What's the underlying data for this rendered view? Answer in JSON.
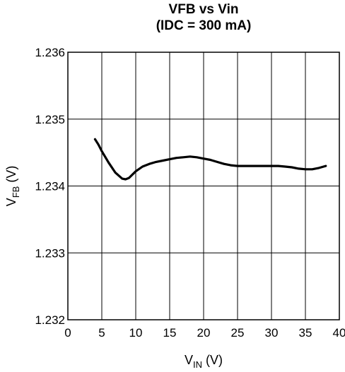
{
  "chart_data": {
    "type": "line",
    "title": "VFB vs Vin",
    "subtitle": "(IDC = 300 mA)",
    "xlabel": {
      "main": "V",
      "sub": "IN",
      "unit": " (V)"
    },
    "ylabel": {
      "main": "V",
      "sub": "FB",
      "unit": " (V)"
    },
    "xlim": [
      0,
      40
    ],
    "ylim": [
      1.232,
      1.236
    ],
    "x_ticks": [
      "0",
      "5",
      "10",
      "15",
      "20",
      "25",
      "30",
      "35",
      "40"
    ],
    "x_tick_values": [
      0,
      5,
      10,
      15,
      20,
      25,
      30,
      35,
      40
    ],
    "y_ticks": [
      "1.232",
      "1.233",
      "1.234",
      "1.235",
      "1.236"
    ],
    "y_tick_values": [
      1.232,
      1.233,
      1.234,
      1.235,
      1.236
    ],
    "grid": true,
    "series": [
      {
        "x": [
          4,
          4.5,
          5,
          6,
          7,
          8,
          8.5,
          9,
          10,
          11,
          12,
          13,
          14,
          15,
          16,
          17,
          18,
          19,
          20,
          21,
          22,
          23,
          24,
          25,
          26,
          27,
          28,
          29,
          30,
          31,
          32,
          33,
          34,
          35,
          36,
          37,
          38
        ],
        "values": [
          1.2347,
          1.23462,
          1.23452,
          1.23435,
          1.2342,
          1.23411,
          1.2341,
          1.23412,
          1.23422,
          1.23429,
          1.23433,
          1.23436,
          1.23438,
          1.2344,
          1.23442,
          1.23443,
          1.23444,
          1.23443,
          1.23441,
          1.23439,
          1.23436,
          1.23433,
          1.23431,
          1.2343,
          1.2343,
          1.2343,
          1.2343,
          1.2343,
          1.2343,
          1.2343,
          1.23429,
          1.23428,
          1.23426,
          1.23425,
          1.23425,
          1.23427,
          1.2343
        ]
      }
    ]
  }
}
